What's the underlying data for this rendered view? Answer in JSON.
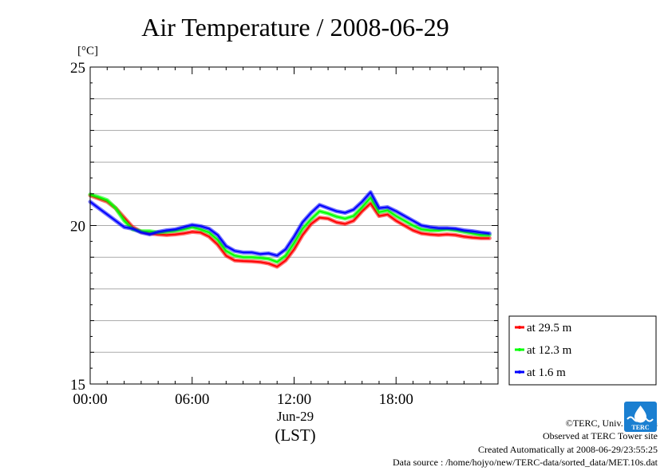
{
  "header": {
    "title": "Air Temperature / 2008-06-29",
    "unit": "[°C]"
  },
  "xaxis": {
    "ticks": [
      "00:00",
      "06:00",
      "12:00",
      "18:00"
    ],
    "date_label": "Jun-29",
    "zone_label": "(LST)"
  },
  "legend": [
    {
      "label": "at 29.5 m",
      "color": "#ff0000"
    },
    {
      "label": "at 12.3 m",
      "color": "#00ff00"
    },
    {
      "label": "at 1.6 m",
      "color": "#0000ff"
    }
  ],
  "credits": {
    "line1": "©TERC, Univ. Tsukuba",
    "line2": "Observed at TERC Tower site",
    "line3": "Created Automatically at 2008-06-29/23:55:25",
    "line4": "Data source : /home/hojyo/new/TERC-data/sorted_data/MET.10s.dat",
    "logo_text": "TERC"
  },
  "chart_data": {
    "type": "line",
    "title": "Air Temperature / 2008-06-29",
    "ylabel": "[°C]",
    "xlabel": "(LST)",
    "xlim": [
      0,
      24
    ],
    "ylim": [
      15,
      25
    ],
    "yticks": [
      15,
      20,
      25
    ],
    "xticks": [
      "00:00",
      "06:00",
      "12:00",
      "18:00"
    ],
    "grid": true,
    "legend_position": "right-bottom, outside plot",
    "x": [
      0.0,
      0.5,
      1.0,
      1.5,
      2.0,
      2.5,
      3.0,
      3.5,
      4.0,
      4.5,
      5.0,
      5.5,
      6.0,
      6.5,
      7.0,
      7.5,
      8.0,
      8.5,
      9.0,
      9.5,
      10.0,
      10.5,
      11.0,
      11.5,
      12.0,
      12.5,
      13.0,
      13.5,
      14.0,
      14.5,
      15.0,
      15.5,
      16.0,
      16.5,
      17.0,
      17.5,
      18.0,
      18.5,
      19.0,
      19.5,
      20.0,
      20.5,
      21.0,
      21.5,
      22.0,
      22.5,
      23.0,
      23.5
    ],
    "series": [
      {
        "name": "at 29.5 m",
        "color": "#ff0000",
        "values": [
          20.95,
          20.85,
          20.75,
          20.55,
          20.25,
          19.95,
          19.8,
          19.75,
          19.72,
          19.7,
          19.72,
          19.75,
          19.8,
          19.78,
          19.65,
          19.4,
          19.05,
          18.9,
          18.88,
          18.87,
          18.85,
          18.8,
          18.7,
          18.9,
          19.25,
          19.7,
          20.05,
          20.25,
          20.22,
          20.1,
          20.05,
          20.15,
          20.45,
          20.7,
          20.3,
          20.35,
          20.15,
          20.0,
          19.85,
          19.75,
          19.72,
          19.7,
          19.72,
          19.7,
          19.65,
          19.62,
          19.6,
          19.6
        ]
      },
      {
        "name": "at 12.3 m",
        "color": "#00ff00",
        "values": [
          20.98,
          20.9,
          20.8,
          20.55,
          20.15,
          19.88,
          19.82,
          19.82,
          19.78,
          19.8,
          19.83,
          19.88,
          19.95,
          19.88,
          19.78,
          19.55,
          19.2,
          19.05,
          19.0,
          19.0,
          18.98,
          18.95,
          18.85,
          19.05,
          19.45,
          19.9,
          20.2,
          20.45,
          20.38,
          20.28,
          20.22,
          20.3,
          20.58,
          20.88,
          20.42,
          20.48,
          20.3,
          20.15,
          20.0,
          19.88,
          19.85,
          19.85,
          19.88,
          19.85,
          19.8,
          19.75,
          19.7,
          19.7
        ]
      },
      {
        "name": "at 1.6 m",
        "color": "#0000ff",
        "values": [
          20.75,
          20.55,
          20.35,
          20.15,
          19.95,
          19.9,
          19.78,
          19.72,
          19.8,
          19.85,
          19.88,
          19.95,
          20.02,
          19.98,
          19.9,
          19.7,
          19.35,
          19.2,
          19.15,
          19.15,
          19.1,
          19.12,
          19.05,
          19.25,
          19.65,
          20.1,
          20.4,
          20.65,
          20.55,
          20.45,
          20.4,
          20.5,
          20.75,
          21.05,
          20.55,
          20.58,
          20.45,
          20.3,
          20.15,
          20.0,
          19.95,
          19.92,
          19.92,
          19.9,
          19.85,
          19.82,
          19.78,
          19.75
        ]
      }
    ]
  }
}
